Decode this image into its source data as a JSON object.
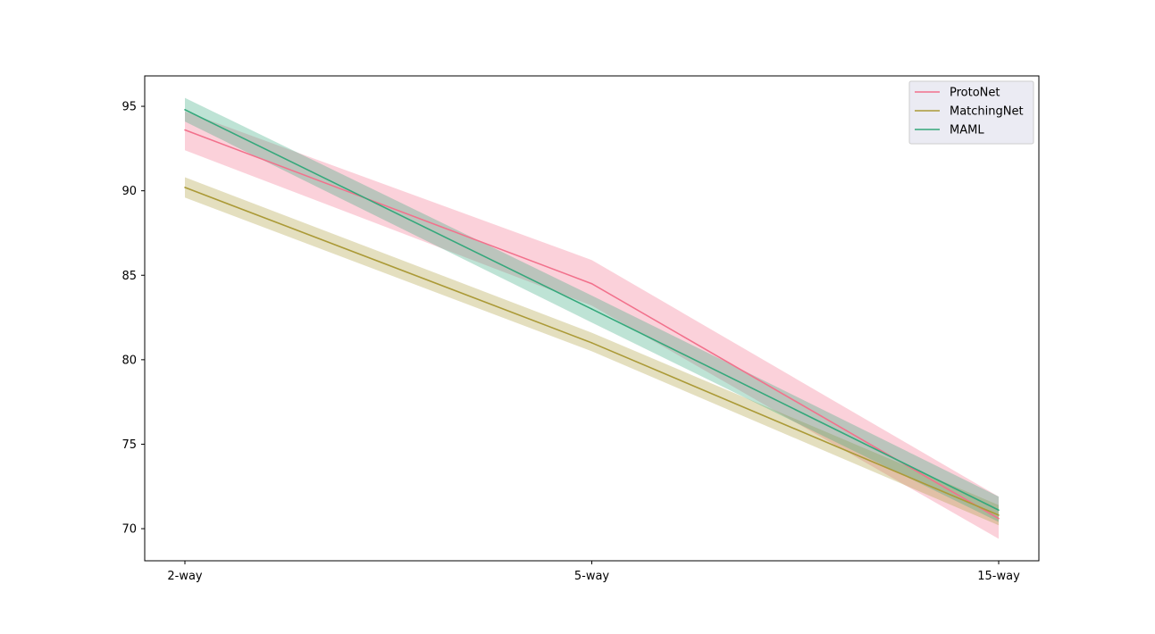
{
  "chart_data": {
    "type": "line",
    "title": "",
    "xlabel": "",
    "ylabel": "",
    "categories": [
      "2-way",
      "5-way",
      "15-way"
    ],
    "ylim": [
      68.1,
      96.8
    ],
    "yticks": [
      70,
      75,
      80,
      85,
      90,
      95
    ],
    "grid": false,
    "legend_position": "top-right",
    "series": [
      {
        "name": "ProtoNet",
        "color": "#f2718c",
        "values": [
          93.6,
          84.5,
          70.6
        ],
        "lower": [
          92.4,
          83.2,
          69.4
        ],
        "upper": [
          94.7,
          85.9,
          71.9
        ]
      },
      {
        "name": "MatchingNet",
        "color": "#ab9a37",
        "values": [
          90.2,
          81.0,
          70.8
        ],
        "lower": [
          89.6,
          80.5,
          70.2
        ],
        "upper": [
          90.8,
          81.6,
          71.4
        ]
      },
      {
        "name": "MAML",
        "color": "#34a87b",
        "values": [
          94.8,
          83.0,
          71.1
        ],
        "lower": [
          94.1,
          82.2,
          70.4
        ],
        "upper": [
          95.5,
          83.8,
          71.9
        ]
      }
    ]
  }
}
